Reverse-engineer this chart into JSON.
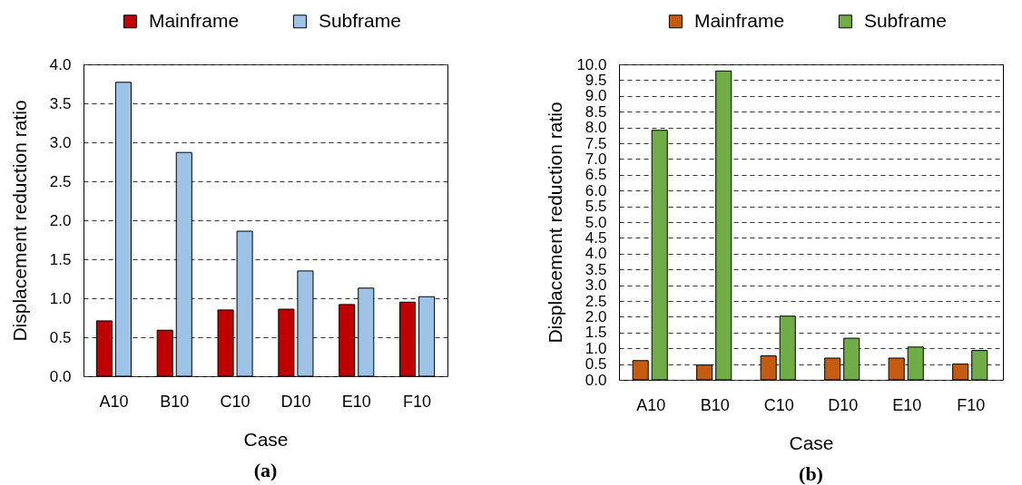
{
  "chart_data": [
    {
      "type": "bar",
      "title": "(a)",
      "xlabel": "Case",
      "ylabel": "Displacement reduction ratio",
      "categories": [
        "A10",
        "B10",
        "C10",
        "D10",
        "E10",
        "F10"
      ],
      "series": [
        {
          "name": "Mainframe",
          "color": "#c00000",
          "values": [
            0.71,
            0.59,
            0.85,
            0.86,
            0.92,
            0.95
          ]
        },
        {
          "name": "Subframe",
          "color": "#9dc3e6",
          "values": [
            3.77,
            2.87,
            1.86,
            1.35,
            1.13,
            1.02
          ]
        }
      ],
      "ylim": [
        0,
        4
      ],
      "yticks": [
        {
          "value": 0,
          "label": "0.0"
        },
        0.5,
        {
          "value": 1,
          "label": "1.0"
        },
        1.5,
        {
          "value": 2,
          "label": "2.0"
        },
        2.5,
        {
          "value": 3,
          "label": "3.0"
        },
        3.5,
        {
          "value": 4,
          "label": "4.0"
        }
      ],
      "grid": "y",
      "legend": "top"
    },
    {
      "type": "bar",
      "title": "(b)",
      "xlabel": "Case",
      "ylabel": "Displacement reduction ratio",
      "categories": [
        "A10",
        "B10",
        "C10",
        "D10",
        "E10",
        "F10"
      ],
      "series": [
        {
          "name": "Mainframe",
          "color": "#c55a11",
          "values": [
            0.61,
            0.47,
            0.76,
            0.69,
            0.69,
            0.5
          ]
        },
        {
          "name": "Subframe",
          "color": "#70ad47",
          "values": [
            7.91,
            9.79,
            2.02,
            1.32,
            1.04,
            0.93
          ]
        }
      ],
      "ylim": [
        0,
        10
      ],
      "yticks": [
        {
          "value": 0,
          "label": "0.0"
        },
        0.5,
        {
          "value": 1,
          "label": "1.0"
        },
        1.5,
        {
          "value": 2,
          "label": "2.0"
        },
        2.5,
        {
          "value": 3,
          "label": "3.0"
        },
        3.5,
        {
          "value": 4,
          "label": "4.0"
        },
        4.5,
        {
          "value": 5,
          "label": "5.0"
        },
        5.5,
        {
          "value": 6,
          "label": "6.0"
        },
        6.5,
        {
          "value": 7,
          "label": "7.0"
        },
        7.5,
        {
          "value": 8,
          "label": "8.0"
        },
        8.5,
        {
          "value": 9,
          "label": "9.0"
        },
        9.5,
        {
          "value": 10,
          "label": "10.0"
        }
      ],
      "grid": "y",
      "legend": "top"
    }
  ]
}
